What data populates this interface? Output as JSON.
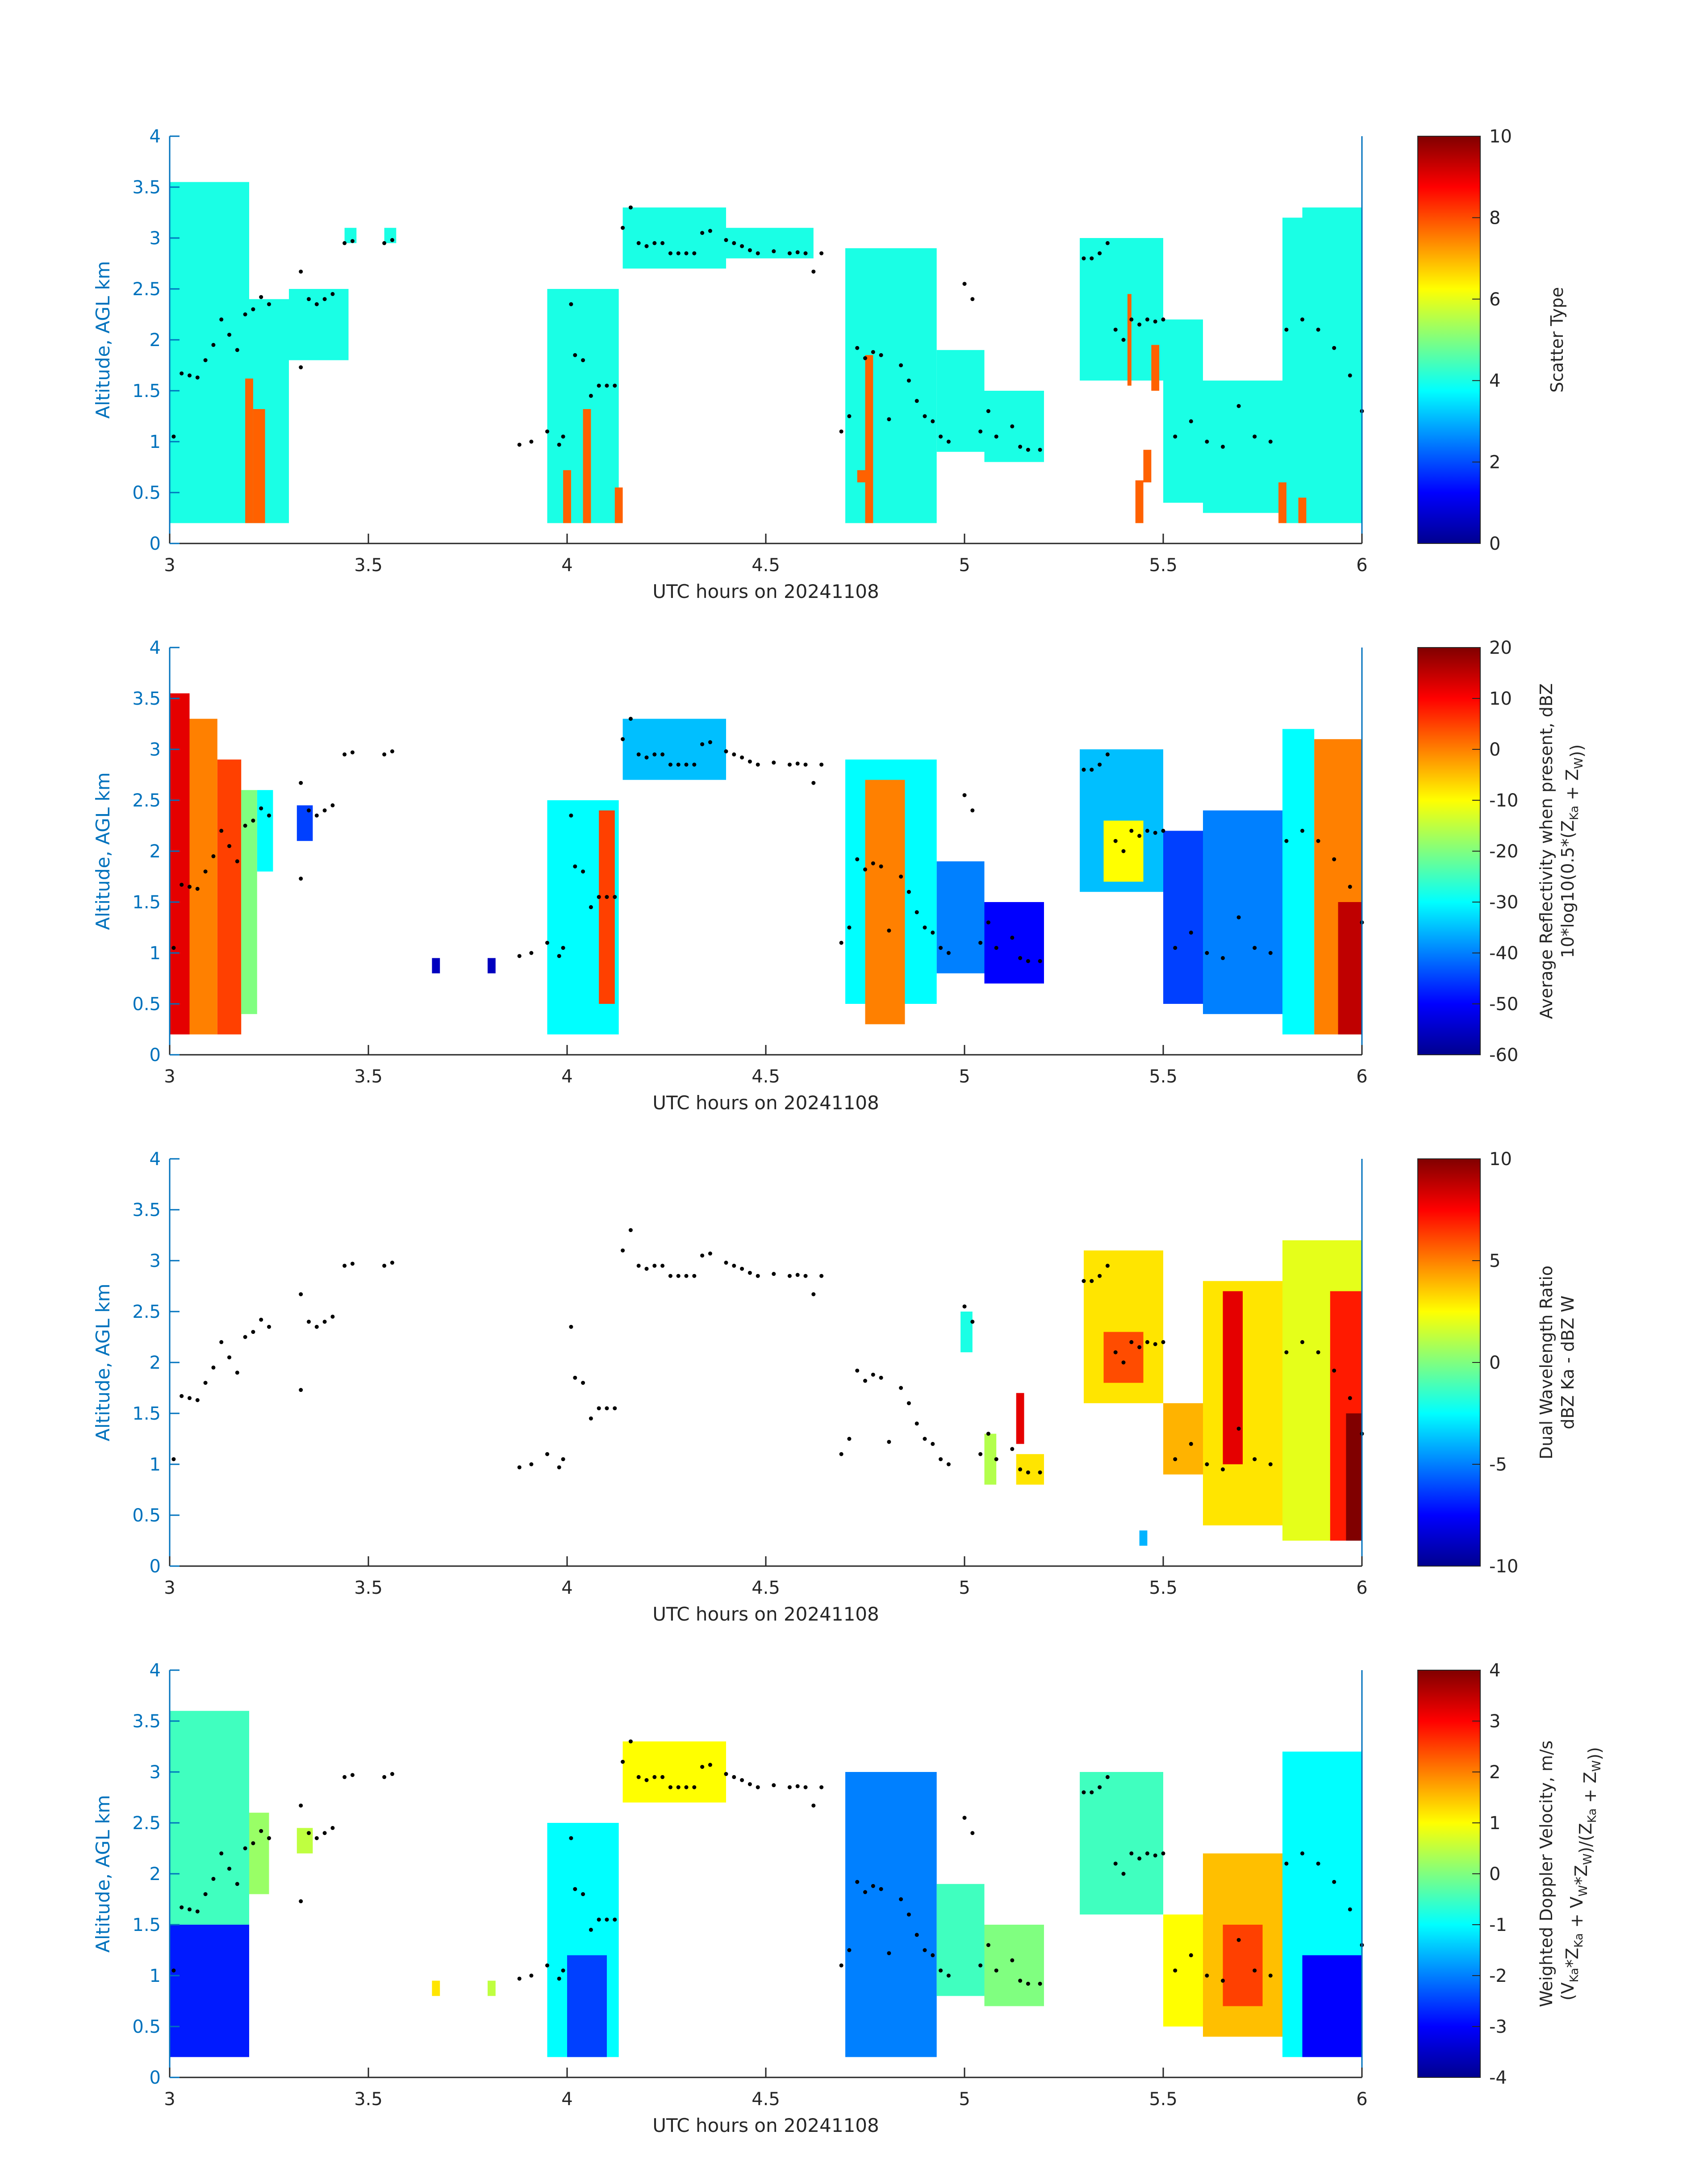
{
  "figure": {
    "xlabel": "UTC hours on 20241108",
    "ylabel": "Altitude, AGL km"
  },
  "chart_data": [
    {
      "type": "heatmap",
      "xlabel": "UTC hours on 20241108",
      "ylabel": "Altitude, AGL km",
      "xlim": [
        3,
        6
      ],
      "ylim": [
        0,
        4
      ],
      "xticks": [
        "3",
        "3.5",
        "4",
        "4.5",
        "5",
        "5.5",
        "6"
      ],
      "yticks": [
        "0",
        "0.5",
        "1",
        "1.5",
        "2",
        "2.5",
        "3",
        "3.5",
        "4"
      ],
      "colorbar": {
        "label_lines": [
          "Scatter Type"
        ],
        "range": [
          0,
          10
        ],
        "ticks": [
          "0",
          "2",
          "4",
          "6",
          "8",
          "10"
        ]
      },
      "dominant_value": 4,
      "secondary_value": 7.8,
      "cells": [
        [
          3.0,
          3.2,
          0.2,
          3.55,
          4
        ],
        [
          3.2,
          3.3,
          0.2,
          2.4,
          4
        ],
        [
          3.08,
          3.2,
          3.0,
          3.1,
          4
        ],
        [
          3.3,
          3.45,
          1.8,
          2.5,
          4
        ],
        [
          3.44,
          3.47,
          2.95,
          3.1,
          4
        ],
        [
          3.54,
          3.57,
          2.95,
          3.1,
          4
        ],
        [
          3.95,
          4.13,
          0.2,
          2.5,
          4
        ],
        [
          4.14,
          4.4,
          2.7,
          3.3,
          4
        ],
        [
          4.4,
          4.62,
          2.8,
          3.1,
          4
        ],
        [
          4.7,
          4.93,
          0.2,
          2.9,
          4
        ],
        [
          4.93,
          5.05,
          0.9,
          1.9,
          4
        ],
        [
          5.05,
          5.2,
          0.8,
          1.5,
          4
        ],
        [
          5.29,
          5.5,
          1.6,
          3.0,
          4
        ],
        [
          5.5,
          5.6,
          0.4,
          2.2,
          4
        ],
        [
          5.6,
          5.8,
          0.3,
          1.6,
          4
        ],
        [
          5.8,
          6.0,
          0.2,
          3.2,
          4
        ],
        [
          5.85,
          6.0,
          2.5,
          3.3,
          4
        ],
        [
          3.19,
          3.21,
          0.2,
          1.62,
          7.8
        ],
        [
          3.21,
          3.24,
          0.2,
          1.32,
          7.8
        ],
        [
          3.99,
          4.01,
          0.2,
          0.72,
          7.8
        ],
        [
          4.04,
          4.06,
          0.2,
          1.32,
          7.8
        ],
        [
          4.12,
          4.14,
          0.2,
          0.55,
          7.8
        ],
        [
          4.75,
          4.77,
          0.2,
          1.85,
          7.8
        ],
        [
          4.73,
          4.75,
          0.6,
          0.72,
          7.8
        ],
        [
          5.41,
          5.42,
          1.55,
          2.45,
          7.8
        ],
        [
          5.43,
          5.45,
          0.2,
          0.62,
          7.8
        ],
        [
          5.45,
          5.47,
          0.6,
          0.92,
          7.8
        ],
        [
          5.47,
          5.49,
          1.5,
          1.95,
          7.8
        ],
        [
          5.79,
          5.81,
          0.2,
          0.6,
          7.8
        ],
        [
          5.84,
          5.86,
          0.2,
          0.45,
          7.8
        ]
      ]
    },
    {
      "type": "heatmap",
      "xlabel": "UTC hours on 20241108",
      "ylabel": "Altitude, AGL km",
      "xlim": [
        3,
        6
      ],
      "ylim": [
        0,
        4
      ],
      "xticks": [
        "3",
        "3.5",
        "4",
        "4.5",
        "5",
        "5.5",
        "6"
      ],
      "yticks": [
        "0",
        "0.5",
        "1",
        "1.5",
        "2",
        "2.5",
        "3",
        "3.5",
        "4"
      ],
      "colorbar": {
        "label_lines": [
          "Average Reflectivity when present, dBZ",
          "10*log10(0.5*(Z_Ka + Z_W))"
        ],
        "range": [
          -60,
          20
        ],
        "ticks": [
          "-60",
          "-50",
          "-40",
          "-30",
          "-20",
          "-10",
          "0",
          "10",
          "20"
        ]
      },
      "cells": [
        [
          3.0,
          3.05,
          0.2,
          3.55,
          12
        ],
        [
          3.05,
          3.12,
          0.2,
          3.3,
          0
        ],
        [
          3.12,
          3.18,
          0.2,
          2.9,
          5
        ],
        [
          3.18,
          3.22,
          0.4,
          2.6,
          -20
        ],
        [
          3.22,
          3.26,
          1.8,
          2.6,
          -30
        ],
        [
          3.32,
          3.36,
          2.1,
          2.45,
          -45
        ],
        [
          3.66,
          3.68,
          0.8,
          0.95,
          -55
        ],
        [
          3.8,
          3.82,
          0.8,
          0.95,
          -55
        ],
        [
          3.95,
          4.13,
          0.2,
          2.5,
          -30
        ],
        [
          4.08,
          4.12,
          0.5,
          2.4,
          5
        ],
        [
          4.14,
          4.4,
          2.7,
          3.3,
          -35
        ],
        [
          4.7,
          4.93,
          0.5,
          2.9,
          -30
        ],
        [
          4.75,
          4.85,
          0.3,
          2.7,
          0
        ],
        [
          4.93,
          5.05,
          0.8,
          1.9,
          -40
        ],
        [
          5.05,
          5.2,
          0.7,
          1.5,
          -50
        ],
        [
          5.29,
          5.5,
          1.6,
          3.0,
          -35
        ],
        [
          5.35,
          5.45,
          1.7,
          2.3,
          -10
        ],
        [
          5.5,
          5.6,
          0.5,
          2.2,
          -45
        ],
        [
          5.6,
          5.8,
          0.4,
          2.4,
          -40
        ],
        [
          5.8,
          5.88,
          0.2,
          3.2,
          -30
        ],
        [
          5.88,
          6.0,
          0.2,
          3.1,
          0
        ],
        [
          5.94,
          6.0,
          0.2,
          1.5,
          15
        ]
      ]
    },
    {
      "type": "heatmap",
      "xlabel": "UTC hours on 20241108",
      "ylabel": "Altitude, AGL km",
      "xlim": [
        3,
        6
      ],
      "ylim": [
        0,
        4
      ],
      "xticks": [
        "3",
        "3.5",
        "4",
        "4.5",
        "5",
        "5.5",
        "6"
      ],
      "yticks": [
        "0",
        "0.5",
        "1",
        "1.5",
        "2",
        "2.5",
        "3",
        "3.5",
        "4"
      ],
      "colorbar": {
        "label_lines": [
          "Dual Wavelength Ratio",
          "dBZ Ka - dBZ W"
        ],
        "range": [
          -10,
          10
        ],
        "ticks": [
          "-10",
          "-5",
          "0",
          "5",
          "10"
        ]
      },
      "cells": [
        [
          4.99,
          5.02,
          2.1,
          2.5,
          -2
        ],
        [
          5.05,
          5.08,
          0.8,
          1.3,
          1
        ],
        [
          5.13,
          5.15,
          1.2,
          1.7,
          8
        ],
        [
          5.13,
          5.2,
          0.8,
          1.1,
          3
        ],
        [
          5.3,
          5.5,
          1.6,
          3.1,
          3
        ],
        [
          5.35,
          5.45,
          1.8,
          2.3,
          6
        ],
        [
          5.44,
          5.46,
          0.2,
          0.35,
          -4
        ],
        [
          5.5,
          5.6,
          0.9,
          1.6,
          4
        ],
        [
          5.6,
          5.8,
          0.4,
          2.8,
          3
        ],
        [
          5.65,
          5.7,
          1.0,
          2.7,
          8
        ],
        [
          5.8,
          6.0,
          0.25,
          3.2,
          2
        ],
        [
          5.92,
          6.0,
          0.25,
          2.7,
          7
        ],
        [
          5.96,
          6.0,
          0.25,
          1.5,
          10
        ]
      ]
    },
    {
      "type": "heatmap",
      "xlabel": "UTC hours on 20241108",
      "ylabel": "Altitude, AGL km",
      "xlim": [
        3,
        6
      ],
      "ylim": [
        0,
        4
      ],
      "xticks": [
        "3",
        "3.5",
        "4",
        "4.5",
        "5",
        "5.5",
        "6"
      ],
      "yticks": [
        "0",
        "0.5",
        "1",
        "1.5",
        "2",
        "2.5",
        "3",
        "3.5",
        "4"
      ],
      "colorbar": {
        "label_lines": [
          "Weighted Doppler Velocity, m/s",
          "(V_Ka*Z_Ka + V_W*Z_W)/(Z_Ka + Z_W))"
        ],
        "range": [
          -4,
          4
        ],
        "ticks": [
          "-4",
          "-3",
          "-2",
          "-1",
          "0",
          "1",
          "2",
          "3",
          "4"
        ]
      },
      "cells": [
        [
          3.0,
          3.2,
          1.5,
          3.6,
          -0.5
        ],
        [
          3.0,
          3.2,
          0.2,
          1.5,
          -2.8
        ],
        [
          3.2,
          3.25,
          1.8,
          2.6,
          0.2
        ],
        [
          3.32,
          3.36,
          2.2,
          2.45,
          0.5
        ],
        [
          3.66,
          3.68,
          0.8,
          0.95,
          1.2
        ],
        [
          3.8,
          3.82,
          0.8,
          0.95,
          0.5
        ],
        [
          3.95,
          4.13,
          0.2,
          2.5,
          -1.0
        ],
        [
          4.0,
          4.1,
          0.2,
          1.2,
          -2.5
        ],
        [
          4.14,
          4.4,
          2.7,
          3.3,
          1.0
        ],
        [
          4.7,
          4.93,
          0.2,
          3.0,
          -2.0
        ],
        [
          4.93,
          5.05,
          0.8,
          1.9,
          -0.5
        ],
        [
          5.05,
          5.2,
          0.7,
          1.5,
          0.0
        ],
        [
          5.29,
          5.5,
          1.6,
          3.0,
          -0.5
        ],
        [
          5.5,
          5.6,
          0.5,
          1.6,
          1.0
        ],
        [
          5.6,
          5.8,
          0.4,
          2.2,
          1.5
        ],
        [
          5.65,
          5.75,
          0.7,
          1.5,
          2.5
        ],
        [
          5.8,
          6.0,
          0.2,
          3.2,
          -1.0
        ],
        [
          5.85,
          6.0,
          0.2,
          1.2,
          -3.0
        ]
      ]
    }
  ],
  "overlay_points": {
    "x": [
      3.01,
      3.03,
      3.05,
      3.07,
      3.09,
      3.11,
      3.13,
      3.15,
      3.17,
      3.19,
      3.21,
      3.23,
      3.25,
      3.33,
      3.33,
      3.35,
      3.37,
      3.39,
      3.41,
      3.44,
      3.46,
      3.54,
      3.56,
      3.88,
      3.91,
      3.95,
      3.98,
      3.99,
      4.01,
      4.02,
      4.04,
      4.06,
      4.08,
      4.1,
      4.12,
      4.14,
      4.16,
      4.18,
      4.2,
      4.22,
      4.24,
      4.26,
      4.28,
      4.3,
      4.32,
      4.34,
      4.36,
      4.4,
      4.42,
      4.44,
      4.46,
      4.48,
      4.52,
      4.56,
      4.58,
      4.6,
      4.62,
      4.64,
      4.69,
      4.71,
      4.73,
      4.75,
      4.77,
      4.79,
      4.81,
      4.84,
      4.86,
      4.88,
      4.9,
      4.92,
      4.94,
      4.96,
      5.0,
      5.02,
      5.04,
      5.06,
      5.08,
      5.12,
      5.14,
      5.16,
      5.19,
      5.3,
      5.32,
      5.34,
      5.36,
      5.38,
      5.4,
      5.42,
      5.44,
      5.46,
      5.48,
      5.5,
      5.53,
      5.57,
      5.61,
      5.65,
      5.69,
      5.73,
      5.77,
      5.81,
      5.85,
      5.89,
      5.93,
      5.97,
      6.0
    ],
    "y": [
      1.05,
      1.67,
      1.65,
      1.63,
      1.8,
      1.95,
      2.2,
      2.05,
      1.9,
      2.25,
      2.3,
      2.42,
      2.35,
      1.73,
      2.67,
      2.4,
      2.35,
      2.4,
      2.45,
      2.95,
      2.97,
      2.95,
      2.98,
      0.97,
      1.0,
      1.1,
      0.97,
      1.05,
      2.35,
      1.85,
      1.8,
      1.45,
      1.55,
      1.55,
      1.55,
      3.1,
      3.3,
      2.95,
      2.92,
      2.95,
      2.95,
      2.85,
      2.85,
      2.85,
      2.85,
      3.05,
      3.07,
      2.98,
      2.95,
      2.92,
      2.88,
      2.85,
      2.87,
      2.85,
      2.86,
      2.85,
      2.67,
      2.85,
      1.1,
      1.25,
      1.92,
      1.82,
      1.88,
      1.85,
      1.22,
      1.75,
      1.6,
      1.4,
      1.25,
      1.2,
      1.05,
      1.0,
      2.55,
      2.4,
      1.1,
      1.3,
      1.05,
      1.15,
      0.95,
      0.92,
      0.92,
      2.8,
      2.8,
      2.85,
      2.95,
      2.1,
      2.0,
      2.2,
      2.15,
      2.2,
      2.18,
      2.2,
      1.05,
      1.2,
      1.0,
      0.95,
      1.35,
      1.05,
      1.0,
      2.1,
      2.2,
      2.1,
      1.92,
      1.65,
      1.3
    ]
  }
}
